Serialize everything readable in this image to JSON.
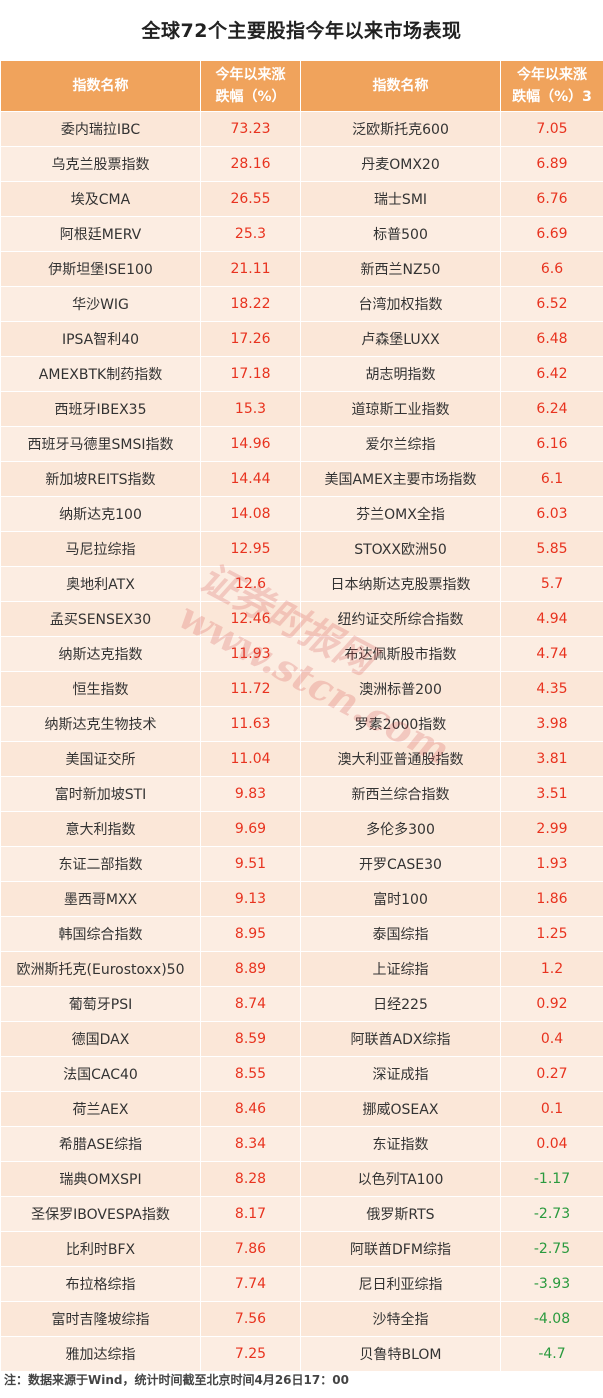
{
  "title": "全球72个主要股指今年以来市场表现",
  "header": {
    "col1": "指数名称",
    "col2_line1": "今年以来涨",
    "col2_line2": "跌幅（%）",
    "col3": "指数名称",
    "col4_line1": "今年以来涨",
    "col4_line2": "跌幅（%）3"
  },
  "rows": [
    {
      "n1": "委内瑞拉IBC",
      "v1": "73.23",
      "n2": "泛欧斯托克600",
      "v2": "7.05"
    },
    {
      "n1": "乌克兰股票指数",
      "v1": "28.16",
      "n2": "丹麦OMX20",
      "v2": "6.89"
    },
    {
      "n1": "埃及CMA",
      "v1": "26.55",
      "n2": "瑞士SMI",
      "v2": "6.76"
    },
    {
      "n1": "阿根廷MERV",
      "v1": "25.3",
      "n2": "标普500",
      "v2": "6.69"
    },
    {
      "n1": "伊斯坦堡ISE100",
      "v1": "21.11",
      "n2": "新西兰NZ50",
      "v2": "6.6"
    },
    {
      "n1": "华沙WIG",
      "v1": "18.22",
      "n2": "台湾加权指数",
      "v2": "6.52"
    },
    {
      "n1": "IPSA智利40",
      "v1": "17.26",
      "n2": "卢森堡LUXX",
      "v2": "6.48"
    },
    {
      "n1": "AMEXBTK制药指数",
      "v1": "17.18",
      "n2": "胡志明指数",
      "v2": "6.42"
    },
    {
      "n1": "西班牙IBEX35",
      "v1": "15.3",
      "n2": "道琼斯工业指数",
      "v2": "6.24"
    },
    {
      "n1": "西班牙马德里SMSI指数",
      "v1": "14.96",
      "n2": "爱尔兰综指",
      "v2": "6.16"
    },
    {
      "n1": "新加坡REITS指数",
      "v1": "14.44",
      "n2": "美国AMEX主要市场指数",
      "v2": "6.1"
    },
    {
      "n1": "纳斯达克100",
      "v1": "14.08",
      "n2": "芬兰OMX全指",
      "v2": "6.03"
    },
    {
      "n1": "马尼拉综指",
      "v1": "12.95",
      "n2": "STOXX欧洲50",
      "v2": "5.85"
    },
    {
      "n1": "奥地利ATX",
      "v1": "12.6",
      "n2": "日本纳斯达克股票指数",
      "v2": "5.7"
    },
    {
      "n1": "孟买SENSEX30",
      "v1": "12.46",
      "n2": "纽约证交所综合指数",
      "v2": "4.94"
    },
    {
      "n1": "纳斯达克指数",
      "v1": "11.93",
      "n2": "布达佩斯股市指数",
      "v2": "4.74"
    },
    {
      "n1": "恒生指数",
      "v1": "11.72",
      "n2": "澳洲标普200",
      "v2": "4.35"
    },
    {
      "n1": "纳斯达克生物技术",
      "v1": "11.63",
      "n2": "罗素2000指数",
      "v2": "3.98"
    },
    {
      "n1": "美国证交所",
      "v1": "11.04",
      "n2": "澳大利亚普通股指数",
      "v2": "3.81"
    },
    {
      "n1": "富时新加坡STI",
      "v1": "9.83",
      "n2": "新西兰综合指数",
      "v2": "3.51"
    },
    {
      "n1": "意大利指数",
      "v1": "9.69",
      "n2": "多伦多300",
      "v2": "2.99"
    },
    {
      "n1": "东证二部指数",
      "v1": "9.51",
      "n2": "开罗CASE30",
      "v2": "1.93"
    },
    {
      "n1": "墨西哥MXX",
      "v1": "9.13",
      "n2": "富时100",
      "v2": "1.86"
    },
    {
      "n1": "韩国综合指数",
      "v1": "8.95",
      "n2": "泰国综指",
      "v2": "1.25"
    },
    {
      "n1": "欧洲斯托克(Eurostoxx)50",
      "v1": "8.89",
      "n2": "上证综指",
      "v2": "1.2"
    },
    {
      "n1": "葡萄牙PSI",
      "v1": "8.74",
      "n2": "日经225",
      "v2": "0.92"
    },
    {
      "n1": "德国DAX",
      "v1": "8.59",
      "n2": "阿联酋ADX综指",
      "v2": "0.4"
    },
    {
      "n1": "法国CAC40",
      "v1": "8.55",
      "n2": "深证成指",
      "v2": "0.27"
    },
    {
      "n1": "荷兰AEX",
      "v1": "8.46",
      "n2": "挪威OSEAX",
      "v2": "0.1"
    },
    {
      "n1": "希腊ASE综指",
      "v1": "8.34",
      "n2": "东证指数",
      "v2": "0.04"
    },
    {
      "n1": "瑞典OMXSPI",
      "v1": "8.28",
      "n2": "以色列TA100",
      "v2": "-1.17"
    },
    {
      "n1": "圣保罗IBOVESPA指数",
      "v1": "8.17",
      "n2": "俄罗斯RTS",
      "v2": "-2.73"
    },
    {
      "n1": "比利时BFX",
      "v1": "7.86",
      "n2": "阿联酋DFM综指",
      "v2": "-2.75"
    },
    {
      "n1": "布拉格综指",
      "v1": "7.74",
      "n2": "尼日利亚综指",
      "v2": "-3.93"
    },
    {
      "n1": "富时吉隆坡综指",
      "v1": "7.56",
      "n2": "沙特全指",
      "v2": "-4.08"
    },
    {
      "n1": "雅加达综指",
      "v1": "7.25",
      "n2": "贝鲁特BLOM",
      "v2": "-4.7"
    }
  ],
  "note": "注：数据来源于Wind，统计时间截至北京时间4月26日17：00",
  "watermark": {
    "line1": "证券时报网",
    "line2": "www.stcn.com"
  },
  "colors": {
    "header_bg": "#f0a35c",
    "positive": "#e8331f",
    "negative": "#2a9a3e",
    "row_bg": "#fbe7d8"
  }
}
